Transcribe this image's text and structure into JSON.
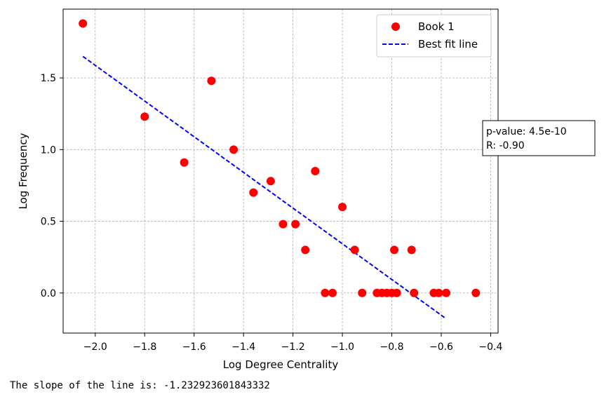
{
  "chart_data": {
    "type": "scatter",
    "xlabel": "Log Degree Centrality",
    "ylabel": "Log Frequency",
    "xlim": [
      -2.13,
      -0.37
    ],
    "ylim": [
      -0.28,
      1.98
    ],
    "xticks": [
      -2.0,
      -1.8,
      -1.6,
      -1.4,
      -1.2,
      -1.0,
      -0.8,
      -0.6,
      -0.4
    ],
    "xtick_labels": [
      "−2.0",
      "−1.8",
      "−1.6",
      "−1.4",
      "−1.2",
      "−1.0",
      "−0.8",
      "−0.6",
      "−0.4"
    ],
    "yticks": [
      0.0,
      0.5,
      1.0,
      1.5
    ],
    "ytick_labels": [
      "0.0",
      "0.5",
      "1.0",
      "1.5"
    ],
    "grid": true,
    "legend_position": "top-right",
    "series": [
      {
        "name": "Book 1",
        "kind": "scatter",
        "color": "#ff0000",
        "x": [
          -2.05,
          -1.8,
          -1.64,
          -1.53,
          -1.44,
          -1.36,
          -1.29,
          -1.24,
          -1.19,
          -1.15,
          -1.11,
          -1.07,
          -1.04,
          -1.0,
          -0.95,
          -0.92,
          -0.86,
          -0.84,
          -0.82,
          -0.8,
          -0.79,
          -0.78,
          -0.72,
          -0.71,
          -0.63,
          -0.61,
          -0.58,
          -0.46
        ],
        "y": [
          1.88,
          1.23,
          0.91,
          1.48,
          1.0,
          0.7,
          0.78,
          0.48,
          0.48,
          0.3,
          0.85,
          0.0,
          0.0,
          0.6,
          0.3,
          0.0,
          0.0,
          0.0,
          0.0,
          0.0,
          0.3,
          0.0,
          0.3,
          0.0,
          0.0,
          0.0,
          0.0,
          0.0
        ]
      },
      {
        "name": "Best fit line",
        "kind": "line",
        "style": "dashed",
        "color": "#0000ff",
        "x": [
          -2.05,
          -0.58
        ],
        "y": [
          1.65,
          -0.18
        ]
      }
    ],
    "annotation": {
      "lines": [
        "p-value: 4.5e-10",
        "R: -0.90"
      ]
    }
  },
  "output": {
    "text": "The slope of the line is: -1.232923601843332"
  }
}
